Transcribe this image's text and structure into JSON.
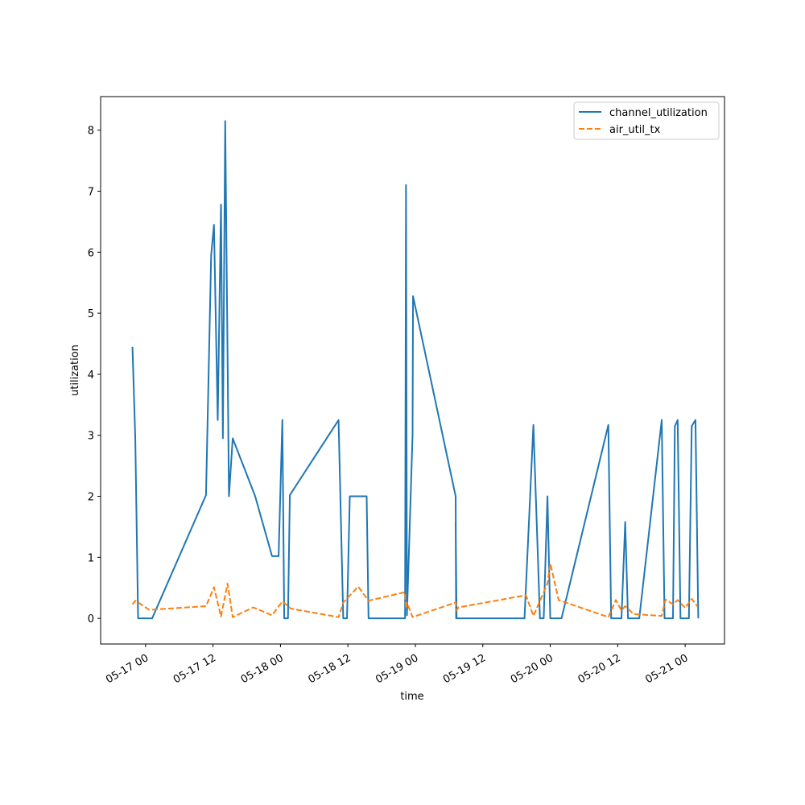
{
  "chart_data": {
    "type": "line",
    "xlabel": "time",
    "ylabel": "utilization",
    "x_type": "datetime",
    "xlim": [
      "2025-05-16 16:00",
      "2025-05-21 07:00"
    ],
    "ylim": [
      -0.42,
      8.55
    ],
    "grid": false,
    "legend_position": "top-right",
    "x_ticks": [
      {
        "t": "2025-05-17 00:00",
        "label": "05-17 00"
      },
      {
        "t": "2025-05-17 12:00",
        "label": "05-17 12"
      },
      {
        "t": "2025-05-18 00:00",
        "label": "05-18 00"
      },
      {
        "t": "2025-05-18 12:00",
        "label": "05-18 12"
      },
      {
        "t": "2025-05-19 00:00",
        "label": "05-19 00"
      },
      {
        "t": "2025-05-19 12:00",
        "label": "05-19 12"
      },
      {
        "t": "2025-05-20 00:00",
        "label": "05-20 00"
      },
      {
        "t": "2025-05-20 12:00",
        "label": "05-20 12"
      },
      {
        "t": "2025-05-21 00:00",
        "label": "05-21 00"
      }
    ],
    "y_ticks": [
      {
        "v": 0,
        "label": "0"
      },
      {
        "v": 1,
        "label": "1"
      },
      {
        "v": 2,
        "label": "2"
      },
      {
        "v": 3,
        "label": "3"
      },
      {
        "v": 4,
        "label": "4"
      },
      {
        "v": 5,
        "label": "5"
      },
      {
        "v": 6,
        "label": "6"
      },
      {
        "v": 7,
        "label": "7"
      },
      {
        "v": 8,
        "label": "8"
      }
    ],
    "series": [
      {
        "name": "channel_utilization",
        "color": "#1f77b4",
        "style": "solid",
        "points": [
          [
            "2025-05-16 21:40",
            4.45
          ],
          [
            "2025-05-16 22:10",
            2.95
          ],
          [
            "2025-05-16 22:40",
            0.0
          ],
          [
            "2025-05-17 01:10",
            0.0
          ],
          [
            "2025-05-17 10:45",
            2.02
          ],
          [
            "2025-05-17 11:40",
            5.95
          ],
          [
            "2025-05-17 12:10",
            6.45
          ],
          [
            "2025-05-17 12:50",
            3.25
          ],
          [
            "2025-05-17 13:25",
            6.78
          ],
          [
            "2025-05-17 13:45",
            2.95
          ],
          [
            "2025-05-17 14:10",
            8.15
          ],
          [
            "2025-05-17 14:50",
            2.0
          ],
          [
            "2025-05-17 15:30",
            2.95
          ],
          [
            "2025-05-17 19:30",
            2.0
          ],
          [
            "2025-05-17 22:30",
            1.02
          ],
          [
            "2025-05-17 23:40",
            1.02
          ],
          [
            "2025-05-18 00:20",
            3.25
          ],
          [
            "2025-05-18 00:40",
            0.0
          ],
          [
            "2025-05-18 01:20",
            0.0
          ],
          [
            "2025-05-18 01:40",
            2.02
          ],
          [
            "2025-05-18 10:20",
            3.25
          ],
          [
            "2025-05-18 11:10",
            0.0
          ],
          [
            "2025-05-18 11:50",
            0.0
          ],
          [
            "2025-05-18 12:20",
            2.0
          ],
          [
            "2025-05-18 15:20",
            2.0
          ],
          [
            "2025-05-18 15:40",
            0.0
          ],
          [
            "2025-05-18 22:10",
            0.0
          ],
          [
            "2025-05-18 22:20",
            7.1
          ],
          [
            "2025-05-18 22:30",
            0.05
          ],
          [
            "2025-05-18 23:30",
            3.0
          ],
          [
            "2025-05-18 23:35",
            5.28
          ],
          [
            "2025-05-19 07:10",
            2.0
          ],
          [
            "2025-05-19 07:15",
            0.0
          ],
          [
            "2025-05-19 07:10",
            1.58
          ],
          [
            "2025-05-19 07:20",
            0.0
          ],
          [
            "2025-05-19 19:25",
            0.0
          ],
          [
            "2025-05-19 21:00",
            3.17
          ],
          [
            "2025-05-19 22:10",
            0.0
          ],
          [
            "2025-05-19 22:50",
            0.0
          ],
          [
            "2025-05-19 23:30",
            2.0
          ],
          [
            "2025-05-20 00:00",
            0.0
          ],
          [
            "2025-05-20 02:00",
            0.0
          ],
          [
            "2025-05-20 10:20",
            3.17
          ],
          [
            "2025-05-20 10:50",
            0.0
          ],
          [
            "2025-05-20 12:40",
            0.0
          ],
          [
            "2025-05-20 13:20",
            1.58
          ],
          [
            "2025-05-20 13:50",
            0.0
          ],
          [
            "2025-05-20 15:50",
            0.0
          ],
          [
            "2025-05-20 19:50",
            3.25
          ],
          [
            "2025-05-20 20:20",
            0.0
          ],
          [
            "2025-05-20 21:50",
            0.0
          ],
          [
            "2025-05-20 22:10",
            3.15
          ],
          [
            "2025-05-20 22:40",
            3.25
          ],
          [
            "2025-05-20 23:10",
            0.0
          ],
          [
            "2025-05-21 00:40",
            0.0
          ],
          [
            "2025-05-21 01:10",
            3.15
          ],
          [
            "2025-05-21 01:50",
            3.25
          ],
          [
            "2025-05-21 02:20",
            0.0
          ]
        ]
      },
      {
        "name": "air_util_tx",
        "color": "#ff7f0e",
        "style": "dashed",
        "points": [
          [
            "2025-05-16 21:40",
            0.23
          ],
          [
            "2025-05-16 22:10",
            0.29
          ],
          [
            "2025-05-17 00:40",
            0.14
          ],
          [
            "2025-05-17 10:45",
            0.2
          ],
          [
            "2025-05-17 12:10",
            0.51
          ],
          [
            "2025-05-17 13:25",
            0.03
          ],
          [
            "2025-05-17 14:35",
            0.57
          ],
          [
            "2025-05-17 15:30",
            0.02
          ],
          [
            "2025-05-17 19:10",
            0.18
          ],
          [
            "2025-05-17 22:30",
            0.05
          ],
          [
            "2025-05-18 00:20",
            0.28
          ],
          [
            "2025-05-18 01:50",
            0.16
          ],
          [
            "2025-05-18 10:20",
            0.02
          ],
          [
            "2025-05-18 11:10",
            0.26
          ],
          [
            "2025-05-18 13:50",
            0.52
          ],
          [
            "2025-05-18 15:40",
            0.29
          ],
          [
            "2025-05-18 22:10",
            0.43
          ],
          [
            "2025-05-18 22:20",
            0.16
          ],
          [
            "2025-05-18 22:30",
            0.26
          ],
          [
            "2025-05-18 23:30",
            0.02
          ],
          [
            "2025-05-19 07:10",
            0.26
          ],
          [
            "2025-05-19 07:20",
            0.13
          ],
          [
            "2025-05-19 07:40",
            0.18
          ],
          [
            "2025-05-19 19:40",
            0.38
          ],
          [
            "2025-05-19 21:00",
            0.04
          ],
          [
            "2025-05-19 23:30",
            0.57
          ],
          [
            "2025-05-20 00:00",
            0.9
          ],
          [
            "2025-05-20 01:30",
            0.3
          ],
          [
            "2025-05-20 10:20",
            0.02
          ],
          [
            "2025-05-20 11:40",
            0.3
          ],
          [
            "2025-05-20 12:40",
            0.13
          ],
          [
            "2025-05-20 13:20",
            0.2
          ],
          [
            "2025-05-20 14:50",
            0.07
          ],
          [
            "2025-05-20 19:50",
            0.04
          ],
          [
            "2025-05-20 20:30",
            0.31
          ],
          [
            "2025-05-20 21:50",
            0.23
          ],
          [
            "2025-05-20 22:40",
            0.3
          ],
          [
            "2025-05-21 00:00",
            0.17
          ],
          [
            "2025-05-21 01:10",
            0.32
          ],
          [
            "2025-05-21 02:10",
            0.2
          ]
        ]
      }
    ]
  }
}
